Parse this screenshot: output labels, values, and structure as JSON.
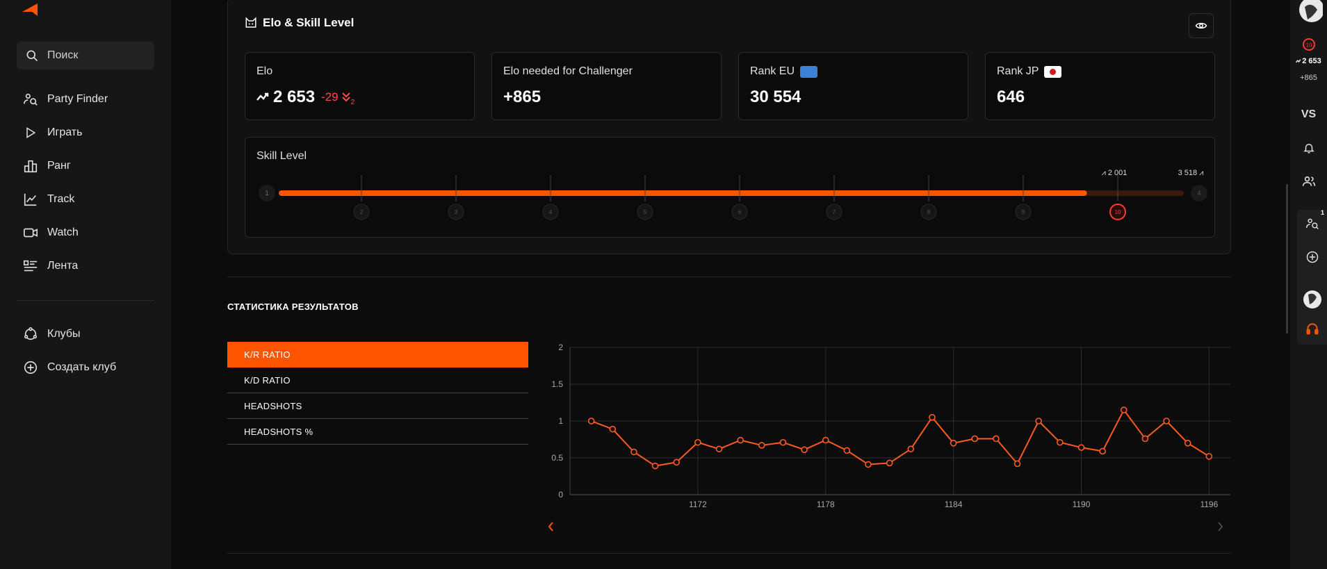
{
  "sidebar": {
    "search_placeholder": "Поиск",
    "items": [
      {
        "label": "Party Finder",
        "icon": "party-finder-icon"
      },
      {
        "label": "Играть",
        "icon": "play-icon"
      },
      {
        "label": "Ранг",
        "icon": "ranking-icon"
      },
      {
        "label": "Track",
        "icon": "track-icon"
      },
      {
        "label": "Watch",
        "icon": "watch-icon"
      },
      {
        "label": "Лента",
        "icon": "feed-icon"
      }
    ],
    "clubs": [
      {
        "label": "Клубы",
        "icon": "clubs-icon"
      },
      {
        "label": "Создать клуб",
        "icon": "plus-circle-icon"
      }
    ]
  },
  "elo_card": {
    "title": "Elo & Skill Level",
    "elo": {
      "label": "Elo",
      "value": "2 653",
      "change": "-29",
      "change_count": "2"
    },
    "challenger": {
      "label": "Elo needed for Challenger",
      "value": "+865"
    },
    "rank_eu": {
      "label": "Rank EU",
      "value": "30 554"
    },
    "rank_jp": {
      "label": "Rank JP",
      "value": "646"
    },
    "skill": {
      "label": "Skill Level",
      "levels": [
        "1",
        "2",
        "3",
        "4",
        "5",
        "6",
        "7",
        "8",
        "9",
        "10"
      ],
      "current_level": "10",
      "progress": 0.893,
      "start_elo": "2 001",
      "end_elo": "3 518",
      "next_level_label": "4"
    }
  },
  "stats": {
    "title": "СТАТИСТИКА РЕЗУЛЬТАТОВ",
    "tabs": [
      "K/R RATIO",
      "K/D RATIO",
      "HEADSHOTS",
      "HEADSHOTS %"
    ],
    "active_tab": 0
  },
  "chart_data": {
    "type": "line",
    "x": [
      1167,
      1168,
      1169,
      1170,
      1171,
      1172,
      1173,
      1174,
      1175,
      1176,
      1177,
      1178,
      1179,
      1180,
      1181,
      1182,
      1183,
      1184,
      1185,
      1186,
      1187,
      1188,
      1189,
      1190,
      1191,
      1192,
      1193,
      1194,
      1195,
      1196
    ],
    "values": [
      1.0,
      0.89,
      0.58,
      0.39,
      0.44,
      0.71,
      0.62,
      0.74,
      0.67,
      0.71,
      0.61,
      0.74,
      0.6,
      0.41,
      0.43,
      0.62,
      1.05,
      0.7,
      0.76,
      0.76,
      0.42,
      1.0,
      0.71,
      0.64,
      0.59,
      1.15,
      0.76,
      1.0,
      0.7,
      0.52
    ],
    "xticks": [
      "1172",
      "1178",
      "1184",
      "1190",
      "1196"
    ],
    "yticks": [
      "0",
      "0.5",
      "1",
      "1.5",
      "2"
    ],
    "ylim": [
      0,
      2
    ],
    "grid": true,
    "color": "#ff5a1f"
  },
  "right_rail": {
    "elo": "2 653",
    "elo_diff": "+865",
    "level": "10",
    "vs": "VS",
    "party_badge": "1"
  },
  "colors": {
    "accent": "#ff5500",
    "background": "#0c0c0c",
    "sidebar": "#161616"
  }
}
